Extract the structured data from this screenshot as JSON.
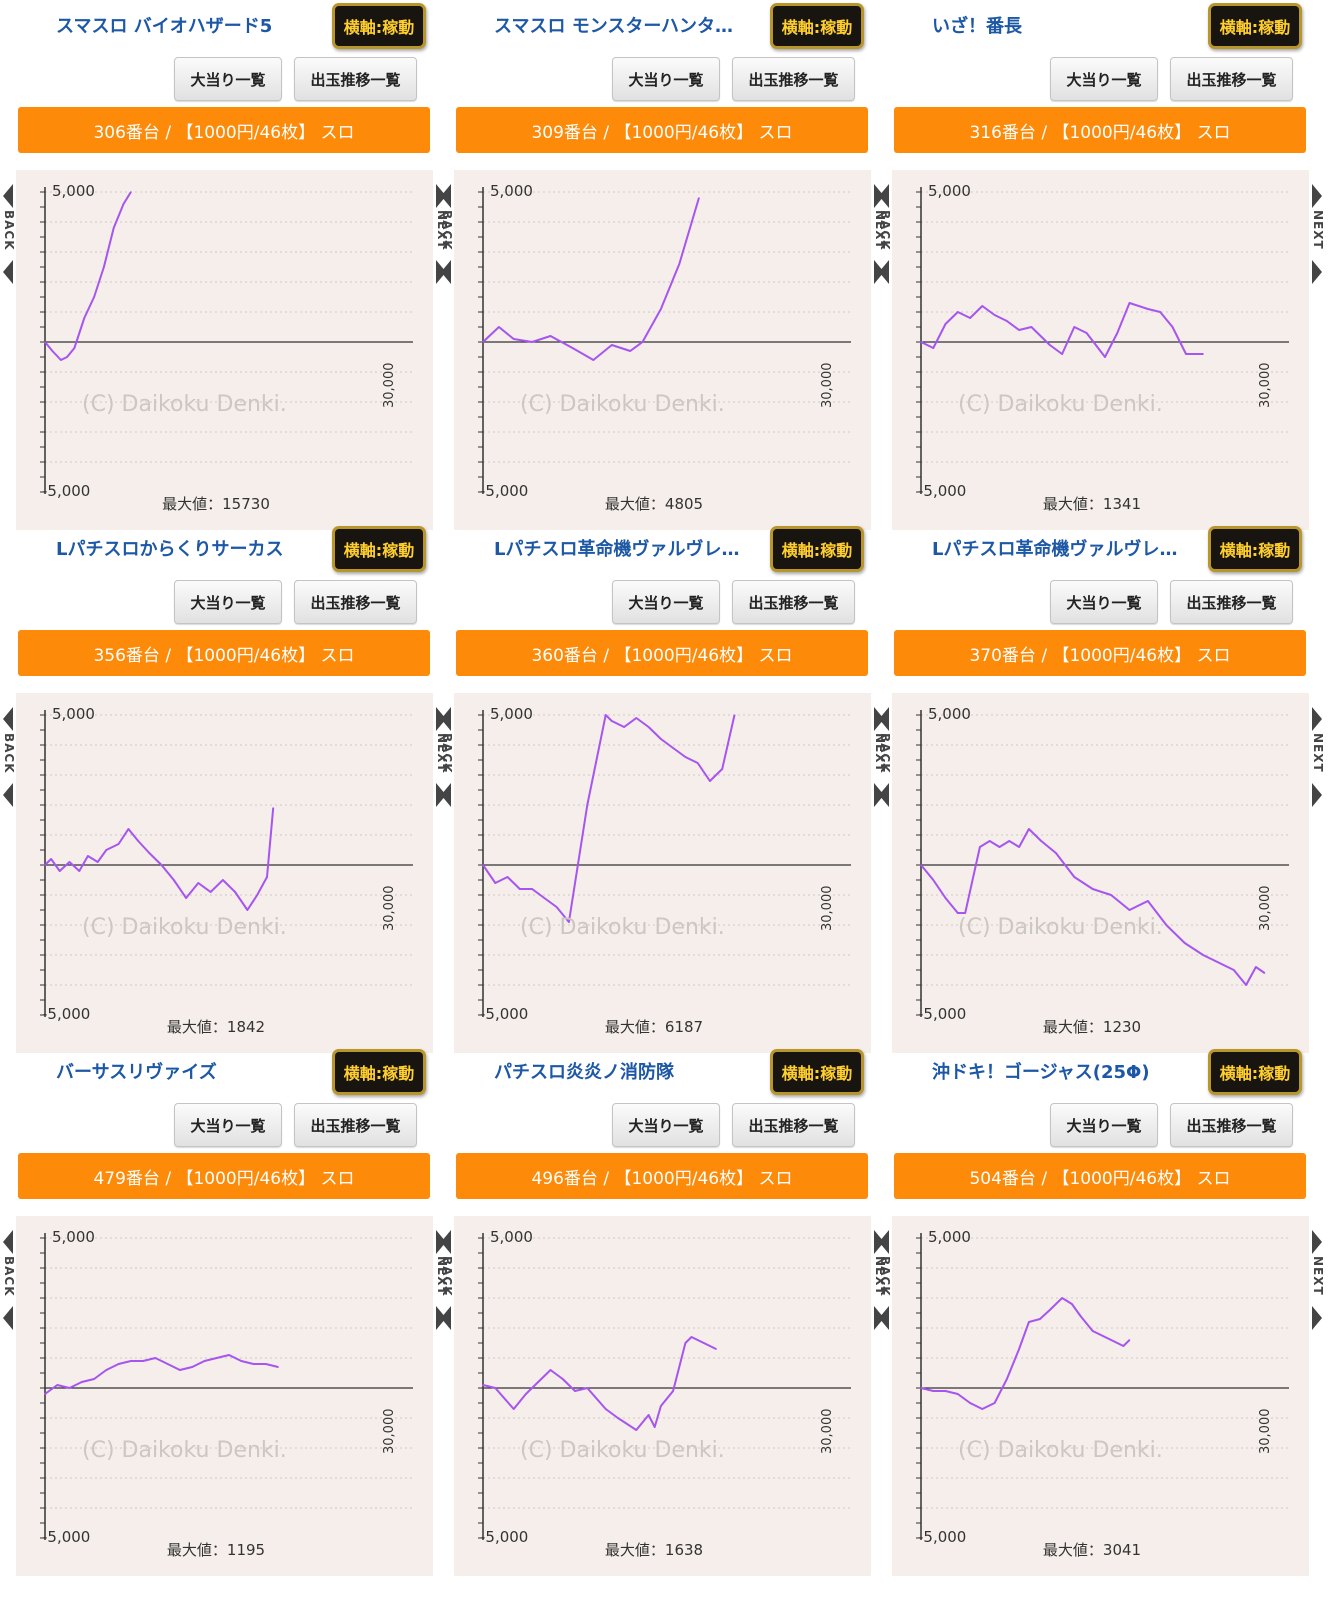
{
  "common": {
    "axis_label": "横軸:稼動",
    "hit_list_label": "大当り一覧",
    "trend_list_label": "出玉推移一覧",
    "back_label": "BACK",
    "next_label": "NEXT",
    "y_max_label": "5,000",
    "y_min_label": "-5,000",
    "x_max_label": "30,000",
    "watermark": "(C) Daikoku Denki.",
    "line_color": "#a655f0",
    "bar_color": "#fd8a08",
    "title_color": "#1d58a6"
  },
  "panels": [
    {
      "title": "スマスロ バイオハザード5",
      "machine": "306番台 / 【1000円/46枚】 スロ",
      "max_label": "最大値：15730"
    },
    {
      "title": "スマスロ モンスターハンタ…",
      "machine": "309番台 / 【1000円/46枚】 スロ",
      "max_label": "最大値：4805"
    },
    {
      "title": "いざ！番長",
      "machine": "316番台 / 【1000円/46枚】 スロ",
      "max_label": "最大値：1341"
    },
    {
      "title": "Lパチスロからくりサーカス",
      "machine": "356番台 / 【1000円/46枚】 スロ",
      "max_label": "最大値：1842"
    },
    {
      "title": "Lパチスロ革命機ヴァルヴレ…",
      "machine": "360番台 / 【1000円/46枚】 スロ",
      "max_label": "最大値：6187"
    },
    {
      "title": "Lパチスロ革命機ヴァルヴレ…",
      "machine": "370番台 / 【1000円/46枚】 スロ",
      "max_label": "最大値：1230"
    },
    {
      "title": "バーサスリヴァイズ",
      "machine": "479番台 / 【1000円/46枚】 スロ",
      "max_label": "最大値：1195"
    },
    {
      "title": "パチスロ炎炎ノ消防隊",
      "machine": "496番台 / 【1000円/46枚】 スロ",
      "max_label": "最大値：1638"
    },
    {
      "title": "沖ドキ！ゴージャス(25Φ)",
      "machine": "504番台 / 【1000円/46枚】 スロ",
      "max_label": "最大値：3041"
    }
  ],
  "chart_data": [
    {
      "type": "line",
      "ylim": [
        -5000,
        5000
      ],
      "xlim": [
        0,
        30000
      ],
      "x": [
        0,
        600,
        1300,
        1800,
        2400,
        3200,
        4000,
        4800,
        5600,
        6400,
        7000
      ],
      "y": [
        0,
        -300,
        -600,
        -500,
        -200,
        800,
        1500,
        2500,
        3800,
        4600,
        5000
      ]
    },
    {
      "type": "line",
      "ylim": [
        -5000,
        5000
      ],
      "xlim": [
        0,
        30000
      ],
      "x": [
        0,
        1300,
        2500,
        4000,
        5500,
        7300,
        9000,
        10500,
        12000,
        13000,
        14500,
        16000,
        17600
      ],
      "y": [
        0,
        500,
        100,
        0,
        200,
        -200,
        -600,
        -100,
        -300,
        0,
        1100,
        2600,
        4800
      ]
    },
    {
      "type": "line",
      "ylim": [
        -5000,
        5000
      ],
      "xlim": [
        0,
        30000
      ],
      "x": [
        0,
        1000,
        2000,
        3000,
        4000,
        5000,
        6000,
        7000,
        8000,
        9000,
        10500,
        11500,
        12500,
        13500,
        15000,
        16000,
        17000,
        18500,
        19500,
        20500,
        21600,
        23000
      ],
      "y": [
        0,
        -200,
        600,
        1000,
        800,
        1200,
        900,
        700,
        400,
        500,
        -100,
        -400,
        500,
        300,
        -500,
        300,
        1300,
        1100,
        1000,
        500,
        -400,
        -400
      ]
    },
    {
      "type": "line",
      "ylim": [
        -5000,
        5000
      ],
      "xlim": [
        0,
        30000
      ],
      "x": [
        0,
        500,
        1200,
        2000,
        2800,
        3500,
        4300,
        5000,
        6000,
        6800,
        7600,
        8500,
        9500,
        10500,
        11500,
        12500,
        13500,
        14500,
        15500,
        16500,
        17300,
        18100,
        18600
      ],
      "y": [
        0,
        200,
        -200,
        100,
        -200,
        300,
        100,
        500,
        700,
        1200,
        800,
        400,
        0,
        -500,
        -1100,
        -600,
        -900,
        -500,
        -900,
        -1500,
        -1000,
        -400,
        1900
      ]
    },
    {
      "type": "line",
      "ylim": [
        -5000,
        5000
      ],
      "xlim": [
        0,
        30000
      ],
      "x": [
        0,
        1000,
        2000,
        3000,
        4000,
        5000,
        6000,
        7000,
        8500,
        10000,
        10500,
        11500,
        12500,
        13500,
        14500,
        15500,
        16500,
        17500,
        18500,
        19500,
        20500
      ],
      "y": [
        0,
        -600,
        -400,
        -800,
        -800,
        -1100,
        -1400,
        -1900,
        2000,
        5000,
        4800,
        4600,
        4900,
        4600,
        4200,
        3900,
        3600,
        3400,
        2800,
        3200,
        5000
      ]
    },
    {
      "type": "line",
      "ylim": [
        -5000,
        5000
      ],
      "xlim": [
        0,
        30000
      ],
      "x": [
        0,
        1000,
        2000,
        3000,
        3600,
        4800,
        5600,
        6400,
        7200,
        8000,
        8800,
        9800,
        11000,
        12500,
        14000,
        15500,
        17000,
        18500,
        20000,
        21500,
        23000,
        24500,
        25500,
        26500,
        27300,
        28000
      ],
      "y": [
        0,
        -500,
        -1100,
        -1600,
        -1600,
        600,
        800,
        600,
        800,
        600,
        1200,
        800,
        400,
        -400,
        -800,
        -1000,
        -1500,
        -1200,
        -2000,
        -2600,
        -3000,
        -3300,
        -3500,
        -4000,
        -3400,
        -3600
      ]
    },
    {
      "type": "line",
      "ylim": [
        -5000,
        5000
      ],
      "xlim": [
        0,
        30000
      ],
      "x": [
        0,
        1000,
        2000,
        3000,
        4000,
        5000,
        6000,
        7000,
        8000,
        9000,
        10000,
        11000,
        12000,
        13000,
        14000,
        15000,
        16000,
        17000,
        18000,
        19000
      ],
      "y": [
        -200,
        100,
        0,
        200,
        300,
        600,
        800,
        900,
        900,
        1000,
        800,
        600,
        700,
        900,
        1000,
        1100,
        900,
        800,
        800,
        700
      ]
    },
    {
      "type": "line",
      "ylim": [
        -5000,
        5000
      ],
      "xlim": [
        0,
        30000
      ],
      "x": [
        0,
        1000,
        2500,
        3500,
        4500,
        5500,
        6500,
        7500,
        8500,
        10000,
        11000,
        12500,
        13500,
        14000,
        14500,
        15500,
        16500,
        17000,
        18000,
        19000
      ],
      "y": [
        100,
        0,
        -700,
        -200,
        200,
        600,
        300,
        -100,
        0,
        -700,
        -1000,
        -1400,
        -900,
        -1300,
        -600,
        -100,
        1500,
        1700,
        1500,
        1300
      ]
    },
    {
      "type": "line",
      "ylim": [
        -5000,
        5000
      ],
      "xlim": [
        0,
        30000
      ],
      "x": [
        0,
        1000,
        2000,
        3000,
        4000,
        5000,
        6000,
        7000,
        8000,
        8800,
        9700,
        10500,
        11500,
        12300,
        13000,
        14000,
        15000,
        16000,
        16500,
        17000
      ],
      "y": [
        0,
        -100,
        -100,
        -200,
        -500,
        -700,
        -500,
        300,
        1300,
        2200,
        2300,
        2600,
        3000,
        2800,
        2400,
        1900,
        1700,
        1500,
        1400,
        1600
      ]
    }
  ]
}
